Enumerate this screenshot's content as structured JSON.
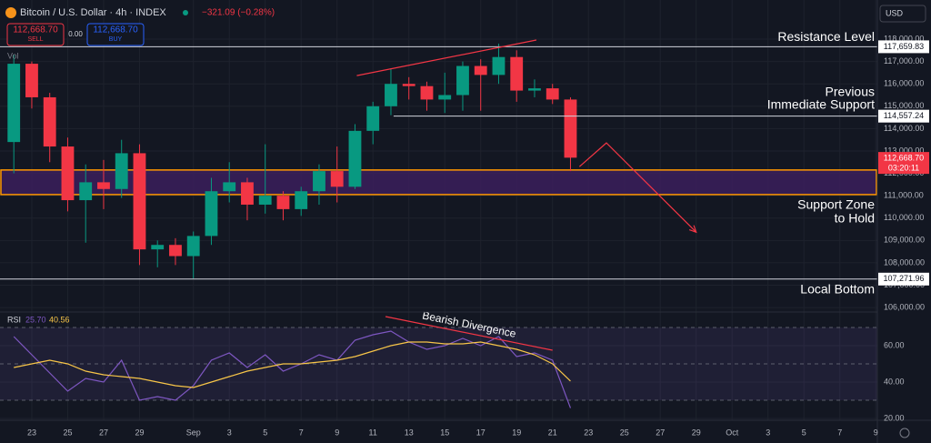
{
  "toolbar": {
    "symbol": "Bitcoin / U.S. Dollar · 4h · INDEX",
    "change": "−321.09 (−0.28%)",
    "sell_price": "112,668.70",
    "sell": "SELL",
    "spread": "0.00",
    "buy_price": "112,668.70",
    "buy": "BUY",
    "volume": "Vol",
    "currency": "USD"
  },
  "chart_data": [
    {
      "type": "candlestick",
      "x": [
        -1,
        0,
        1,
        2,
        3,
        4,
        5,
        6,
        7,
        8,
        9,
        10,
        11,
        12,
        13,
        14,
        15,
        16,
        17,
        18,
        19,
        20,
        21,
        22,
        23,
        24,
        25,
        26,
        27,
        28,
        29,
        30
      ],
      "open": [
        113400,
        116900,
        115400,
        113200,
        110800,
        111600,
        111300,
        112900,
        108600,
        108800,
        108300,
        109200,
        111200,
        111600,
        110600,
        111000,
        110400,
        111200,
        112100,
        111400,
        113900,
        115000,
        116000,
        115900,
        115300,
        115500,
        116800,
        116400,
        117200,
        115700,
        115800,
        115300
      ],
      "high": [
        117300,
        117000,
        115600,
        113600,
        112400,
        112600,
        113500,
        113300,
        109000,
        109100,
        109400,
        111800,
        112500,
        111800,
        113300,
        111200,
        111400,
        112400,
        113200,
        114200,
        115200,
        116700,
        116300,
        116100,
        116500,
        117000,
        117100,
        117800,
        117500,
        116200,
        116000,
        115400
      ],
      "low": [
        112000,
        114900,
        112500,
        110300,
        108900,
        110400,
        110900,
        107900,
        107800,
        107900,
        107300,
        108800,
        110700,
        109900,
        110200,
        109900,
        110100,
        110600,
        110700,
        111300,
        113300,
        114600,
        115300,
        114800,
        114700,
        114800,
        114800,
        116000,
        115200,
        115400,
        115100,
        112100
      ],
      "close": [
        116900,
        115400,
        113200,
        110800,
        111600,
        111300,
        112900,
        108600,
        108800,
        108300,
        109200,
        111200,
        111600,
        110600,
        111000,
        110400,
        111200,
        112100,
        111400,
        113900,
        115000,
        116000,
        115900,
        115300,
        115500,
        116800,
        116400,
        117200,
        115700,
        115800,
        115300,
        112700
      ],
      "up_color": "#089981",
      "down_color": "#f23645",
      "xlim": [
        -1.77,
        47.09
      ],
      "xticks": [
        {
          "value": 0,
          "label": "23"
        },
        {
          "value": 2,
          "label": "25"
        },
        {
          "value": 4,
          "label": "27"
        },
        {
          "value": 6,
          "label": "29"
        },
        {
          "value": 9,
          "label": "Sep"
        },
        {
          "value": 11,
          "label": "3"
        },
        {
          "value": 13,
          "label": "5"
        },
        {
          "value": 15,
          "label": "7"
        },
        {
          "value": 17,
          "label": "9"
        },
        {
          "value": 19,
          "label": "11"
        },
        {
          "value": 21,
          "label": "13"
        },
        {
          "value": 23,
          "label": "15"
        },
        {
          "value": 25,
          "label": "17"
        },
        {
          "value": 27,
          "label": "19"
        },
        {
          "value": 29,
          "label": "21"
        },
        {
          "value": 31,
          "label": "23"
        },
        {
          "value": 33,
          "label": "25"
        },
        {
          "value": 35,
          "label": "27"
        },
        {
          "value": 37,
          "label": "29"
        },
        {
          "value": 39,
          "label": "Oct"
        },
        {
          "value": 41,
          "label": "3"
        },
        {
          "value": 43,
          "label": "5"
        },
        {
          "value": 45,
          "label": "7"
        },
        {
          "value": 47,
          "label": "9"
        }
      ],
      "ylim": [
        105800,
        119750
      ],
      "yticks": [
        {
          "value": 106000,
          "label": "106,000.00"
        },
        {
          "value": 107000,
          "label": "107,000.00"
        },
        {
          "value": 108000,
          "label": "108,000.00"
        },
        {
          "value": 109000,
          "label": "109,000.00"
        },
        {
          "value": 110000,
          "label": "110,000.00"
        },
        {
          "value": 111000,
          "label": "111,000.00"
        },
        {
          "value": 112000,
          "label": "112,000.00"
        },
        {
          "value": 113000,
          "label": "113,000.00"
        },
        {
          "value": 114000,
          "label": "114,000.00"
        },
        {
          "value": 115000,
          "label": "115,000.00"
        },
        {
          "value": 116000,
          "label": "116,000.00"
        },
        {
          "value": 117000,
          "label": "117,000.00"
        },
        {
          "value": 118000,
          "label": "118,000.00"
        }
      ],
      "levels": [
        {
          "value": 117659.83,
          "label": "117,659.83",
          "start": -1.77,
          "text": [
            "Resistance Level"
          ]
        },
        {
          "value": 114557.24,
          "label": "114,557.24",
          "start": 20.15,
          "text": [
            "Previous",
            "Immediate Support"
          ]
        },
        {
          "value": 107271.96,
          "label": "107,271.96",
          "start": -1.77,
          "text": [
            "Local Bottom"
          ]
        }
      ],
      "zone": {
        "low": 111050,
        "high": 112150,
        "text": [
          "Support Zone",
          "to Hold"
        ]
      },
      "last_price": {
        "value": 112668.7,
        "label": "112,668.70",
        "countdown": "03:20:11"
      },
      "trend_line": {
        "x": [
          18.1,
          28.1
        ],
        "y": [
          116370,
          117960
        ]
      },
      "projection": {
        "x": [
          30.5,
          32.0,
          37.0
        ],
        "y": [
          112300,
          113360,
          109370
        ]
      }
    },
    {
      "type": "line",
      "title": "RSI",
      "legend_values": [
        "25.70",
        "40.56"
      ],
      "x": [
        -1,
        0,
        1,
        2,
        3,
        4,
        5,
        6,
        7,
        8,
        9,
        10,
        11,
        12,
        13,
        14,
        15,
        16,
        17,
        18,
        19,
        20,
        21,
        22,
        23,
        24,
        25,
        26,
        27,
        28,
        29,
        30
      ],
      "series": [
        {
          "color": "#7e57c2",
          "values": [
            65,
            55,
            45,
            35,
            42,
            40,
            52,
            30,
            32,
            30,
            38,
            52,
            56,
            48,
            55,
            46,
            50,
            55,
            52,
            63,
            66,
            68,
            62,
            58,
            60,
            64,
            60,
            65,
            54,
            56,
            52,
            25.7
          ]
        },
        {
          "color": "#f7c548",
          "values": [
            48,
            50,
            52,
            50,
            46,
            44,
            43,
            42,
            40,
            38,
            37,
            40,
            43,
            46,
            48,
            50,
            50,
            51,
            52,
            54,
            57,
            60,
            62,
            62,
            61,
            61,
            62,
            60,
            58,
            55,
            50,
            40.56
          ]
        }
      ],
      "xlim": [
        -1.77,
        47.09
      ],
      "ylim": [
        19,
        78.5
      ],
      "yticks": [
        {
          "value": 20,
          "label": "20.00"
        },
        {
          "value": 40,
          "label": "40.00"
        },
        {
          "value": 60,
          "label": "60.00"
        }
      ],
      "levels": [
        70,
        50,
        30
      ],
      "divergence": {
        "text": "Bearish Divergence",
        "x": [
          19.7,
          29.0
        ],
        "y": [
          76,
          57.5
        ]
      }
    }
  ]
}
